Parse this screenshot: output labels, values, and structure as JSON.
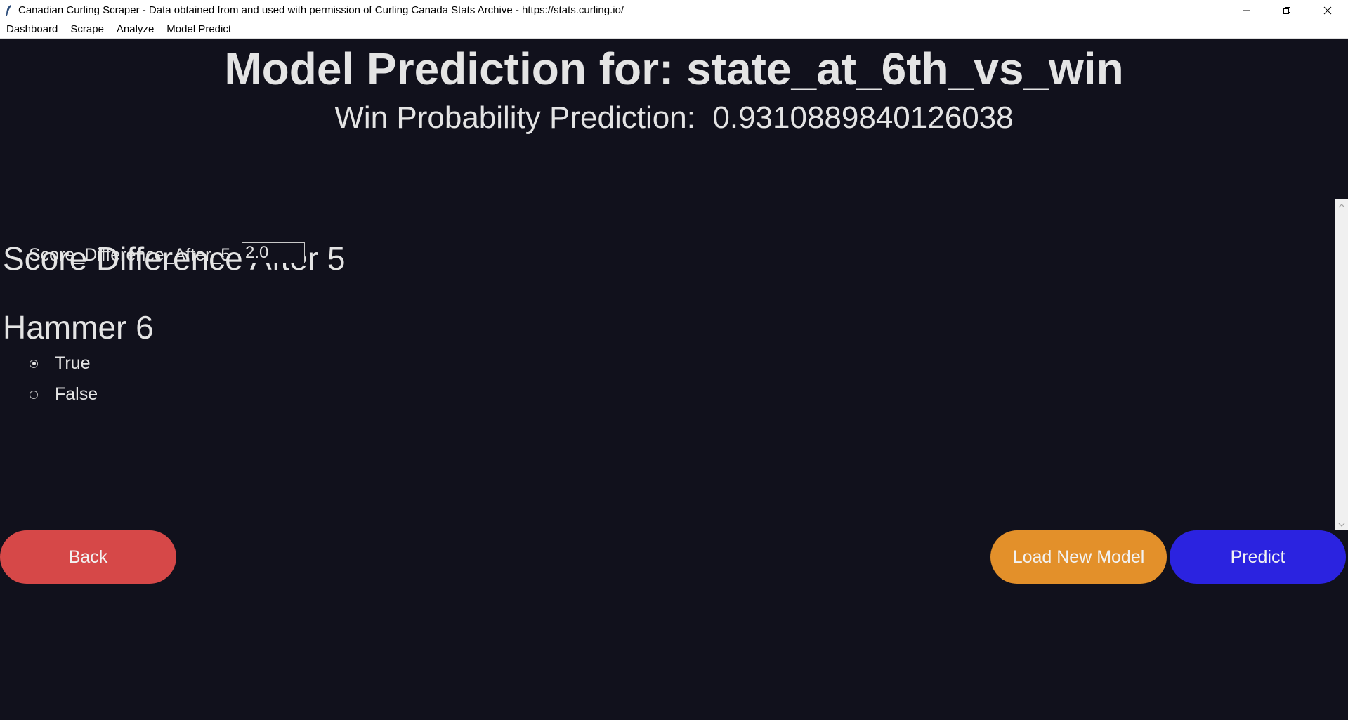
{
  "window": {
    "title": "Canadian Curling Scraper - Data obtained from and used with permission of Curling Canada Stats Archive - https://stats.curling.io/"
  },
  "menu": {
    "items": [
      "Dashboard",
      "Scrape",
      "Analyze",
      "Model Predict"
    ]
  },
  "header": {
    "title": "Model Prediction for: state_at_6th_vs_win",
    "prediction_label": "Win Probability Prediction:",
    "prediction_value": "0.9310889840126038"
  },
  "form": {
    "score_section_title": "Score Difference After 5",
    "score_field_label": "Score_Difference_After_5",
    "score_field_value": "2.0",
    "hammer_section_title": "Hammer 6",
    "hammer_options": [
      {
        "label": "True",
        "selected": true
      },
      {
        "label": "False",
        "selected": false
      }
    ]
  },
  "buttons": {
    "back": "Back",
    "load_model": "Load New Model",
    "predict": "Predict"
  },
  "colors": {
    "background": "#11111c",
    "back_button": "#d64848",
    "load_button": "#e3902a",
    "predict_button": "#2b23e0"
  },
  "icons": {
    "app": "feather-icon",
    "minimize": "minimize-icon",
    "restore": "restore-icon",
    "close": "close-icon"
  }
}
